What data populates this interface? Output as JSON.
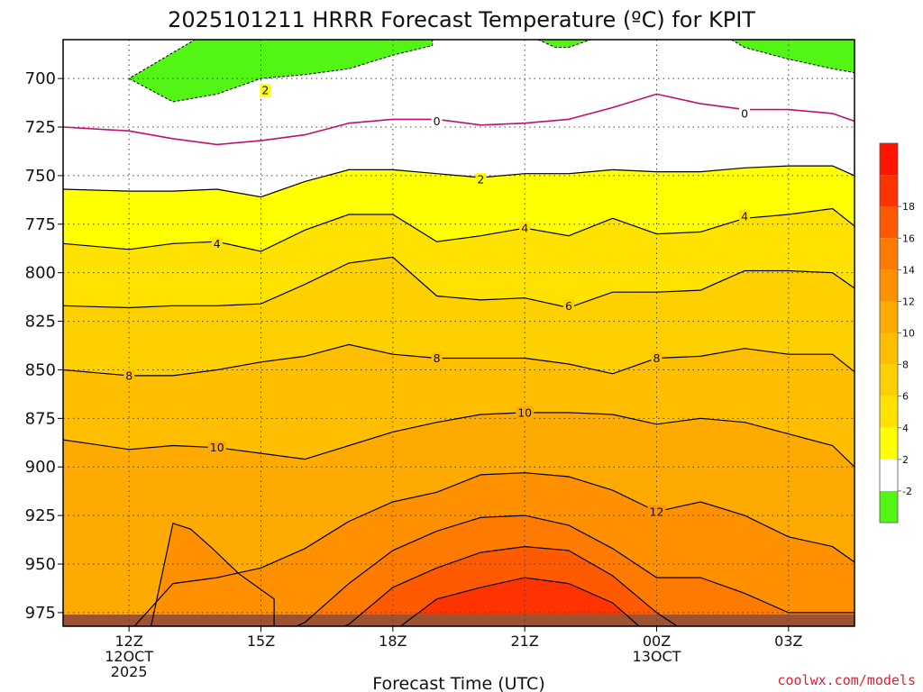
{
  "title": "2025101211 HRRR Forecast Temperature (ºC) for KPIT",
  "watermark": "coolwx.com/models",
  "chart_data": {
    "type": "contour",
    "title": "2025101211 HRRR Forecast Temperature (ºC) for KPIT",
    "xlabel": "Forecast Time (UTC)",
    "ylabel": "",
    "xlim": [
      10.5,
      28.5
    ],
    "ylim": [
      680,
      982
    ],
    "y_inverted": true,
    "x_ticks": [
      {
        "x": 12,
        "lines": [
          "12Z",
          "12OCT",
          "2025"
        ]
      },
      {
        "x": 15,
        "lines": [
          "15Z"
        ]
      },
      {
        "x": 18,
        "lines": [
          "18Z"
        ]
      },
      {
        "x": 21,
        "lines": [
          "21Z"
        ]
      },
      {
        "x": 24,
        "lines": [
          "00Z",
          "13OCT"
        ]
      },
      {
        "x": 27,
        "lines": [
          "03Z"
        ]
      }
    ],
    "y_ticks": [
      700,
      725,
      750,
      775,
      800,
      825,
      850,
      875,
      900,
      925,
      950,
      975
    ],
    "x_knots": [
      10.5,
      12,
      13,
      14,
      15,
      16,
      17,
      18,
      19,
      20,
      21,
      22,
      23,
      24,
      25,
      26,
      27,
      28,
      28.5
    ],
    "isotherms": [
      {
        "level": 0,
        "p": [
          725,
          727,
          731,
          734,
          732,
          729,
          723,
          721,
          721,
          724,
          723,
          721,
          715,
          708,
          713,
          716,
          716,
          718,
          722
        ]
      },
      {
        "level": 2,
        "p": [
          757,
          758,
          758,
          757,
          761,
          753,
          747,
          747,
          749,
          751,
          749,
          749,
          747,
          748,
          748,
          746,
          745,
          745,
          750
        ]
      },
      {
        "level": 4,
        "p": [
          785,
          788,
          785,
          784,
          789,
          778,
          770,
          770,
          784,
          781,
          777,
          781,
          772,
          780,
          779,
          772,
          770,
          767,
          776
        ]
      },
      {
        "level": 6,
        "p": [
          817,
          818,
          817,
          817,
          816,
          806,
          795,
          792,
          812,
          814,
          813,
          818,
          810,
          810,
          809,
          799,
          799,
          800,
          808
        ]
      },
      {
        "level": 8,
        "p": [
          850,
          853,
          853,
          850,
          846,
          843,
          837,
          842,
          844,
          844,
          844,
          847,
          852,
          844,
          843,
          839,
          842,
          842,
          851
        ]
      },
      {
        "level": 10,
        "p": [
          886,
          891,
          889,
          890,
          893,
          896,
          889,
          882,
          877,
          873,
          872,
          872,
          873,
          878,
          875,
          877,
          883,
          889,
          900
        ]
      },
      {
        "level": 12,
        "p": [
          990,
          985,
          960,
          957,
          952,
          942,
          928,
          918,
          913,
          904,
          903,
          905,
          912,
          923,
          918,
          925,
          936,
          941,
          949
        ]
      },
      {
        "level": 14,
        "p": [
          990,
          990,
          990,
          990,
          990,
          980,
          960,
          943,
          933,
          926,
          925,
          930,
          942,
          957,
          957,
          965,
          975,
          975,
          975
        ]
      },
      {
        "level": 16,
        "p": [
          990,
          990,
          990,
          990,
          990,
          990,
          981,
          962,
          952,
          944,
          941,
          943,
          956,
          975,
          990,
          990,
          990,
          990,
          990
        ]
      },
      {
        "level": 18,
        "p": [
          990,
          990,
          990,
          990,
          990,
          990,
          990,
          985,
          968,
          962,
          957,
          960,
          970,
          990,
          990,
          990,
          990,
          990,
          990
        ]
      }
    ],
    "cold_pools_lt_minus2C": [
      {
        "x": [
          12,
          13,
          14,
          15,
          16,
          17,
          18,
          18.9,
          18.9,
          13.5,
          12
        ],
        "p": [
          700,
          712,
          708,
          700,
          698,
          695,
          688,
          683,
          680,
          680,
          700
        ]
      },
      {
        "x": [
          21.3,
          21.7,
          22.0,
          22.5,
          22.9
        ],
        "p": [
          680,
          684,
          684,
          680,
          680
        ]
      },
      {
        "x": [
          25.7,
          26,
          27,
          28,
          28.5,
          28.5
        ],
        "p": [
          680,
          684,
          690,
          695,
          697,
          680
        ]
      }
    ],
    "warm_bubble_12C": {
      "x": [
        13.0,
        13.4,
        13.9,
        14.5,
        15.3,
        15.3,
        12.5
      ],
      "p": [
        929,
        932,
        942,
        955,
        968,
        982,
        982
      ]
    },
    "contour_labels": [
      {
        "text": "2",
        "x": 15.1,
        "p": 706
      },
      {
        "text": "0",
        "x": 19.0,
        "p": 722
      },
      {
        "text": "0",
        "x": 26.0,
        "p": 718
      },
      {
        "text": "2",
        "x": 20.0,
        "p": 752
      },
      {
        "text": "4",
        "x": 14.0,
        "p": 785
      },
      {
        "text": "4",
        "x": 21.0,
        "p": 777
      },
      {
        "text": "4",
        "x": 26.0,
        "p": 771
      },
      {
        "text": "6",
        "x": 22.0,
        "p": 817
      },
      {
        "text": "8",
        "x": 12.0,
        "p": 853
      },
      {
        "text": "8",
        "x": 19.0,
        "p": 844
      },
      {
        "text": "8",
        "x": 24.0,
        "p": 844
      },
      {
        "text": "10",
        "x": 14.0,
        "p": 890
      },
      {
        "text": "10",
        "x": 21.0,
        "p": 872
      },
      {
        "text": "12",
        "x": 24.0,
        "p": 923
      }
    ],
    "ground_band": {
      "p_min": 976,
      "color": "#9e5231"
    },
    "colorbar": {
      "levels": [
        -4,
        -2,
        2,
        4,
        6,
        8,
        10,
        12,
        14,
        16,
        18,
        20
      ],
      "colors": [
        "#52f514",
        "#ffffff",
        "#ffff00",
        "#ffe200",
        "#ffd000",
        "#ffbe00",
        "#ffaa00",
        "#ff9000",
        "#ff7a00",
        "#ff5a00",
        "#ff3300",
        "#ff1400"
      ],
      "tick_labels": [
        "-2",
        "2",
        "4",
        "6",
        "8",
        "10",
        "12",
        "14",
        "16",
        "18"
      ]
    }
  }
}
